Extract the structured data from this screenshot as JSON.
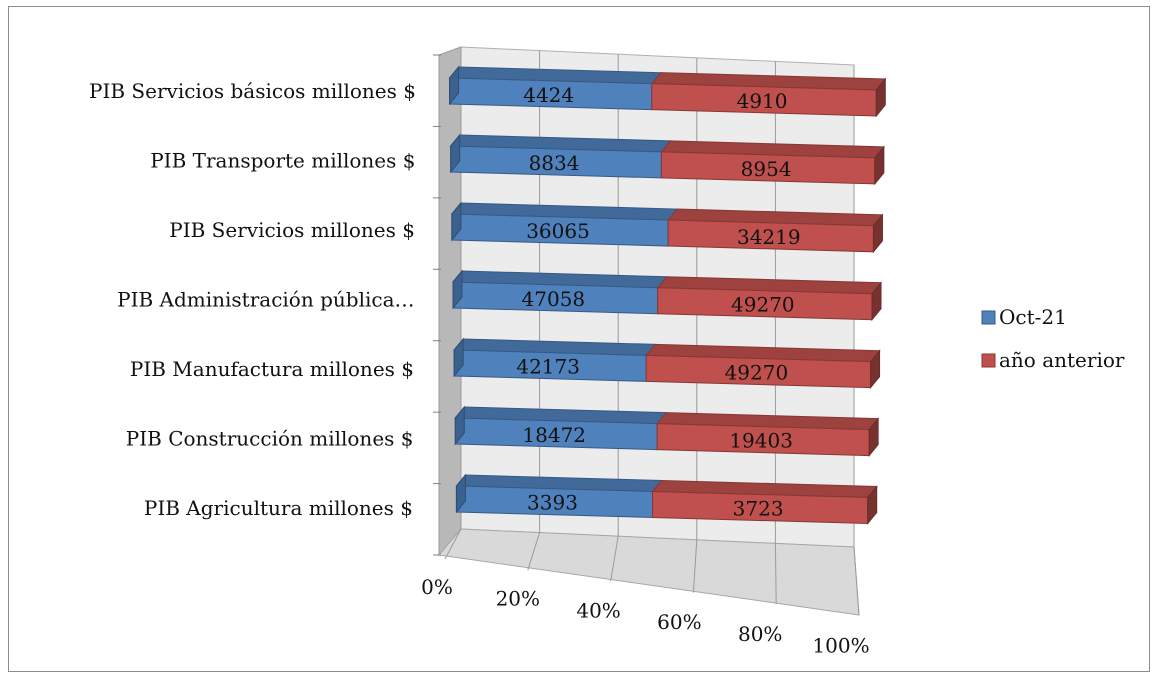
{
  "chart_data": {
    "type": "bar",
    "orientation": "horizontal",
    "stacking": "percent",
    "style": "3d",
    "categories": [
      "PIB Servicios básicos millones $",
      "PIB Transporte millones $",
      "PIB Servicios millones $",
      "PIB Administración pública…",
      "PIB Manufactura millones $",
      "PIB Construcción millones $",
      "PIB Agricultura millones $"
    ],
    "series": [
      {
        "name": "Oct-21",
        "values": [
          4424,
          8834,
          36065,
          47058,
          42173,
          18472,
          3393
        ],
        "color": "#4f81bd"
      },
      {
        "name": "año anterior",
        "values": [
          4910,
          8954,
          34219,
          49270,
          49270,
          19403,
          3723
        ],
        "color": "#c0504d"
      }
    ],
    "x_ticks": [
      "0%",
      "20%",
      "40%",
      "60%",
      "80%",
      "100%"
    ],
    "xlim": [
      0,
      100
    ],
    "grid": true,
    "legend_position": "right",
    "title": "",
    "xlabel": "",
    "ylabel": ""
  }
}
